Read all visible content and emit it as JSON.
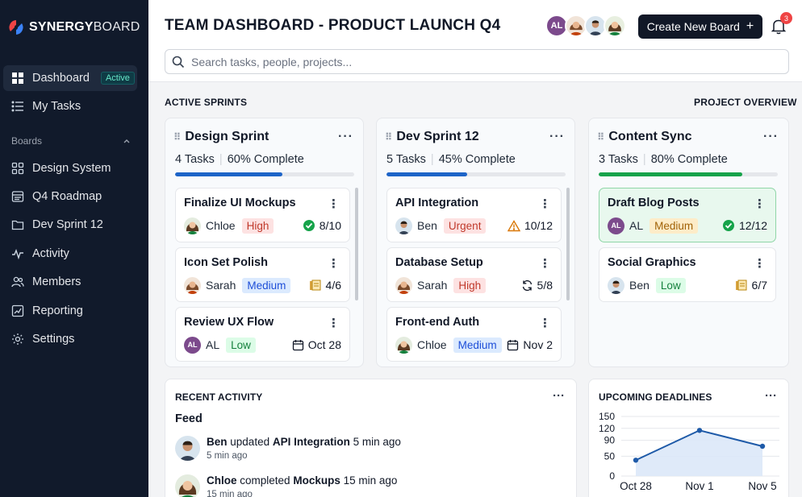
{
  "brand": {
    "logo_text_bold": "SYNERGY",
    "logo_text_rest": "BOARD"
  },
  "sidebar": {
    "top_items": [
      {
        "label": "Dashboard",
        "badge": "Active",
        "icon": "grid-icon"
      },
      {
        "label": "My Tasks",
        "icon": "list-icon"
      }
    ],
    "boards_header": "Boards",
    "items": [
      {
        "label": "Design System",
        "icon": "grid-icon"
      },
      {
        "label": "Q4 Roadmap",
        "icon": "board-icon"
      },
      {
        "label": "Dev Sprint 12",
        "icon": "folder-icon"
      },
      {
        "label": "Activity",
        "icon": "pulse-icon"
      },
      {
        "label": "Members",
        "icon": "users-icon"
      },
      {
        "label": "Reporting",
        "icon": "chart-icon"
      },
      {
        "label": "Settings",
        "icon": "gear-icon"
      }
    ]
  },
  "header": {
    "title": "TEAM DASHBOARD - PRODUCT LAUNCH Q4",
    "team_avatar_initials": "AL",
    "create_button": "Create New Board",
    "create_button_icon": "+",
    "notification_count": "3",
    "search_placeholder": "Search tasks, people, projects..."
  },
  "sections": {
    "active_sprints": "ACTIVE SPRINTS",
    "project_overview": "PROJECT OVERVIEW"
  },
  "columns": [
    {
      "title": "Design Sprint",
      "tasks_count": "4 Tasks",
      "complete": "60% Complete",
      "progress": 0.6,
      "color": "#1d64c8",
      "tasks": [
        {
          "title": "Finalize UI Mockups",
          "assignee": "Chloe",
          "priority": "High",
          "meta": "8/10",
          "meta_icon": "check-circle-icon"
        },
        {
          "title": "Icon Set Polish",
          "assignee": "Sarah",
          "priority": "Medium",
          "meta": "4/6",
          "meta_icon": "hourglass-icon"
        },
        {
          "title": "Review UX Flow",
          "assignee": "AL",
          "priority": "Low",
          "meta": "Oct 28",
          "meta_icon": "calendar-icon"
        }
      ]
    },
    {
      "title": "Dev Sprint 12",
      "tasks_count": "5 Tasks",
      "complete": "45% Complete",
      "progress": 0.45,
      "color": "#1d64c8",
      "tasks": [
        {
          "title": "API Integration",
          "assignee": "Ben",
          "priority": "Urgent",
          "meta": "10/12",
          "meta_icon": "warning-icon"
        },
        {
          "title": "Database Setup",
          "assignee": "Sarah",
          "priority": "High",
          "meta": "5/8",
          "meta_icon": "refresh-icon"
        },
        {
          "title": "Front-end Auth",
          "assignee": "Chloe",
          "priority": "Medium",
          "meta": "Nov 2",
          "meta_icon": "calendar-icon"
        }
      ]
    },
    {
      "title": "Content Sync",
      "tasks_count": "3 Tasks",
      "complete": "80% Complete",
      "progress": 0.8,
      "color": "#16a34a",
      "tasks": [
        {
          "title": "Draft Blog Posts",
          "assignee": "AL",
          "priority": "Medium",
          "meta": "12/12",
          "meta_icon": "check-circle-icon"
        },
        {
          "title": "Social Graphics",
          "assignee": "Ben",
          "priority": "Low",
          "meta": "6/7",
          "meta_icon": "hourglass-icon"
        }
      ]
    }
  ],
  "activity": {
    "label": "RECENT ACTIVITY",
    "feed_title": "Feed",
    "items": [
      {
        "user": "Ben",
        "action": "updated",
        "target": "API Integration",
        "when": "5 min ago",
        "time": "5 min ago"
      },
      {
        "user": "Chloe",
        "action": "completed",
        "target": "Mockups",
        "when": "15 min ago",
        "time": "15 min ago"
      }
    ]
  },
  "deadlines": {
    "label": "UPCOMING DEADLINES"
  },
  "chart_data": {
    "type": "area",
    "categories": [
      "Oct 28",
      "Nov 1",
      "Nov 5"
    ],
    "values": [
      40,
      115,
      75
    ],
    "yticks": [
      0,
      50,
      90,
      120,
      150
    ],
    "ylim": [
      0,
      150
    ],
    "title": "",
    "xlabel": "",
    "ylabel": "",
    "line_color": "#1e5aa8",
    "fill_color": "#dbe8f8",
    "grid": true
  },
  "colors": {
    "sidebar_bg": "#111a2b",
    "accent_blue": "#1d64c8",
    "accent_green": "#16a34a",
    "danger": "#ef4444"
  }
}
